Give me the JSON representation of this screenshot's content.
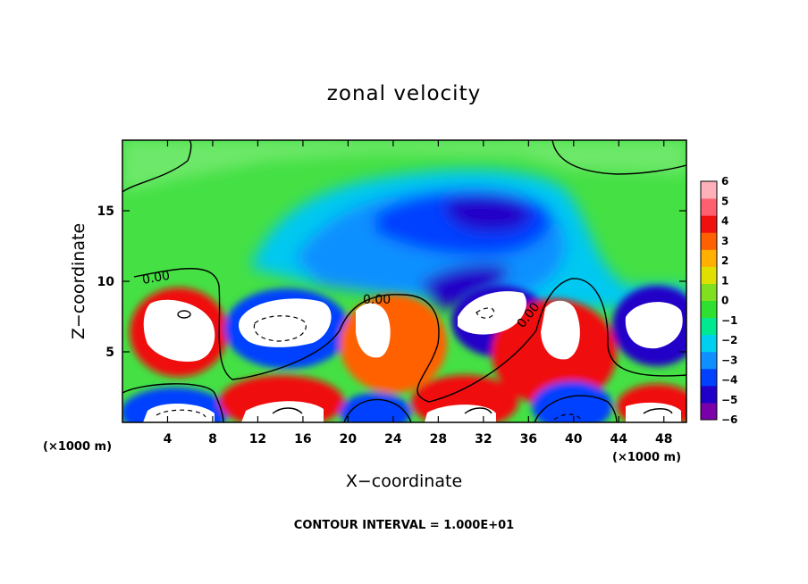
{
  "chart_data": {
    "type": "heatmap",
    "title": "zonal velocity",
    "xlabel": "X−coordinate",
    "ylabel": "Z−coordinate",
    "x_unit_left": "(×1000 m)",
    "x_unit_right": "(×1000 m)",
    "xlim": [
      0,
      50
    ],
    "ylim": [
      0,
      20
    ],
    "x_ticks": [
      4,
      8,
      12,
      16,
      20,
      24,
      28,
      32,
      36,
      40,
      44,
      48
    ],
    "y_ticks": [
      5,
      10,
      15
    ],
    "colorbar": {
      "ticks": [
        "6",
        "5",
        "4",
        "3",
        "2",
        "1",
        "0",
        "−1",
        "−2",
        "−3",
        "−4",
        "−5",
        "−6"
      ],
      "range": [
        -6,
        6
      ],
      "colors": [
        "#7a00aa",
        "#2000c8",
        "#0040ff",
        "#1090ff",
        "#00d0f0",
        "#00e890",
        "#30e030",
        "#80e020",
        "#e0e000",
        "#ffb000",
        "#ff6000",
        "#f01010",
        "#ff6070",
        "#ffb0b8"
      ]
    },
    "contour_labels": [
      "0.00",
      "0.00",
      "0.00"
    ],
    "contour_interval_text": "CONTOUR INTERVAL = 1.000E+01",
    "background_color": "#44e044"
  }
}
